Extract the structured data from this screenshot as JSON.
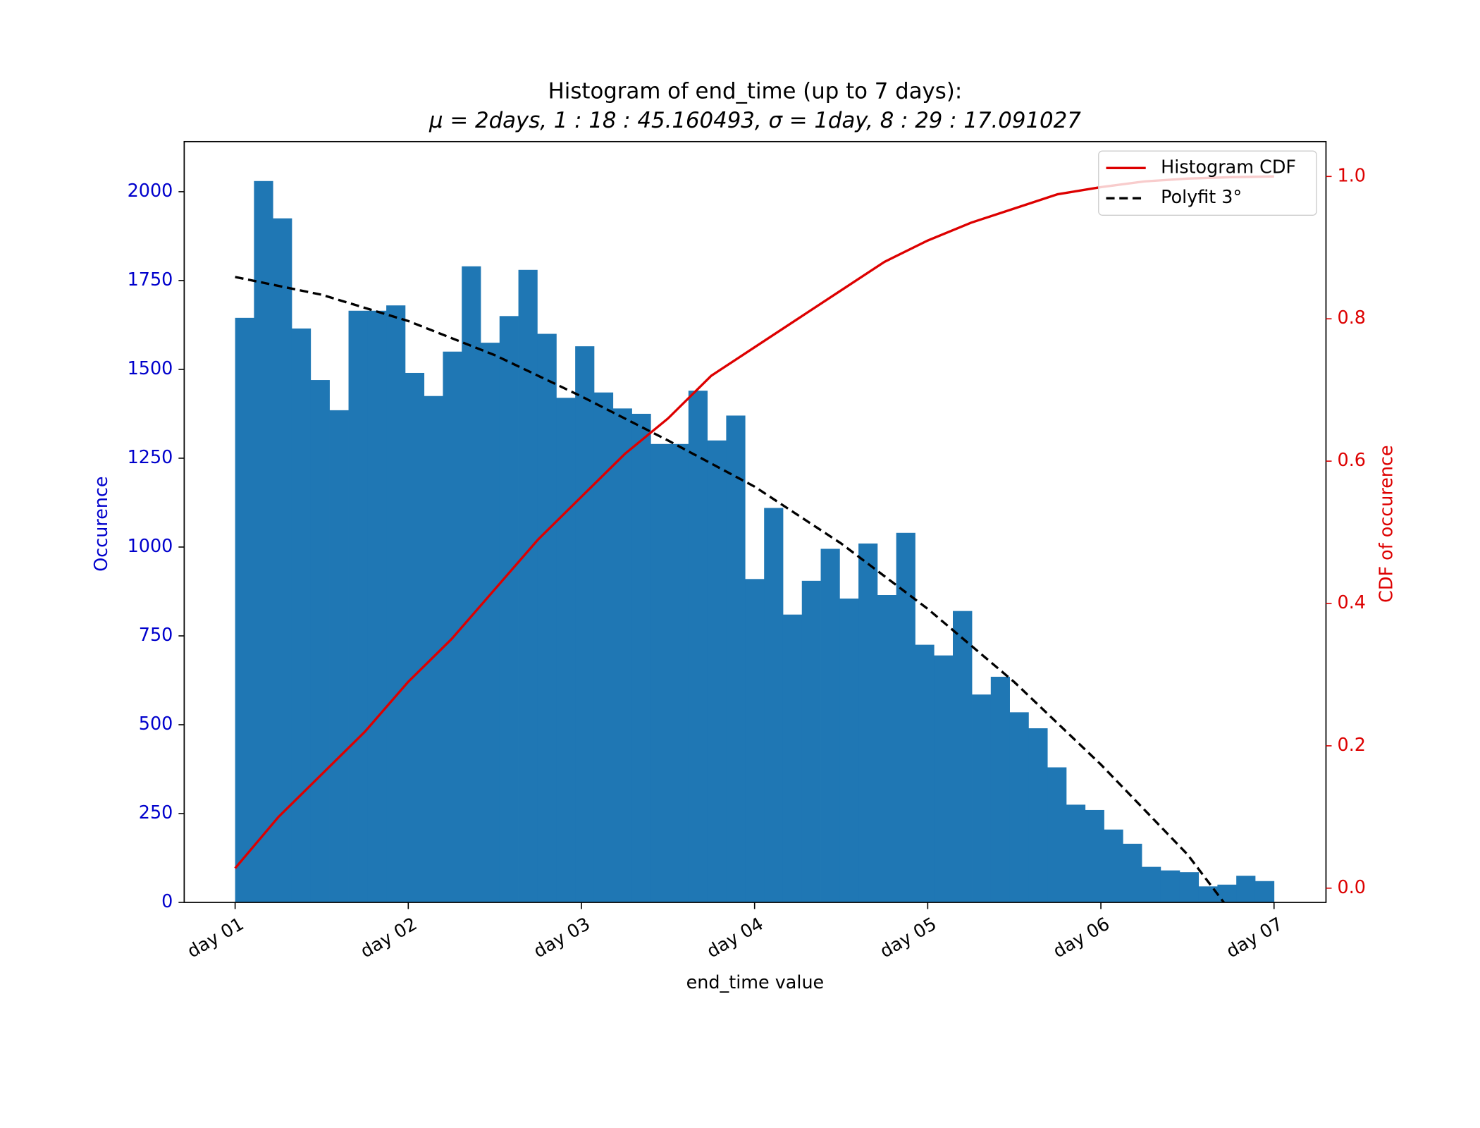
{
  "chart_data": {
    "type": "histogram",
    "title": "Histogram of end_time (up to 7 days):",
    "subtitle": "μ = 2days, 1 : 18 : 45.160493, σ = 1day, 8 : 29 : 17.091027",
    "xlabel": "end_time value",
    "ylabel": "Occurence",
    "y2label": "CDF of occurence",
    "color": "#1f77b4",
    "ylabel_color": "#0000cc",
    "y2label_color": "#dd0000",
    "bins": [
      1,
      1.109,
      1.218,
      1.327,
      1.436,
      1.545,
      1.655,
      1.764,
      1.873,
      1.982,
      2.091,
      2.2,
      2.309,
      2.418,
      2.527,
      2.636,
      2.745,
      2.855,
      2.964,
      3.073,
      3.182,
      3.291,
      3.4,
      3.509,
      3.618,
      3.727,
      3.836,
      3.945,
      4.055,
      4.164,
      4.273,
      4.382,
      4.491,
      4.6,
      4.709,
      4.818,
      4.927,
      5.036,
      5.145,
      5.255,
      5.364,
      5.473,
      5.582,
      5.691,
      5.8,
      5.909,
      6.018,
      6.127,
      6.236,
      6.345,
      6.455,
      6.564,
      6.673,
      6.782,
      6.891,
      7
    ],
    "values": [
      1645,
      2030,
      1925,
      1615,
      1470,
      1385,
      1665,
      1665,
      1680,
      1490,
      1425,
      1550,
      1790,
      1575,
      1650,
      1780,
      1600,
      1420,
      1565,
      1435,
      1390,
      1375,
      1290,
      1290,
      1440,
      1300,
      1370,
      910,
      1110,
      810,
      905,
      995,
      855,
      1010,
      865,
      1040,
      725,
      695,
      820,
      585,
      635,
      535,
      490,
      380,
      275,
      260,
      205,
      165,
      100,
      90,
      85,
      45,
      50,
      75,
      60
    ],
    "xlim": [
      0.706,
      7.3
    ],
    "xticks": [
      {
        "value": 1,
        "label": "day 01"
      },
      {
        "value": 2,
        "label": "day 02"
      },
      {
        "value": 3,
        "label": "day 03"
      },
      {
        "value": 4,
        "label": "day 04"
      },
      {
        "value": 5,
        "label": "day 05"
      },
      {
        "value": 6,
        "label": "day 06"
      },
      {
        "value": 7,
        "label": "day 07"
      }
    ],
    "ylim": [
      0,
      2141
    ],
    "yticks": [
      0,
      250,
      500,
      750,
      1000,
      1250,
      1500,
      1750,
      2000
    ],
    "y2lim": [
      -0.02,
      1.049
    ],
    "y2ticks": [
      {
        "value": 0,
        "label": "0.0"
      },
      0.2,
      0.4,
      0.6,
      0.8,
      {
        "value": 1,
        "label": "1.0"
      }
    ],
    "legend": "upper right",
    "series": [
      {
        "name": "Histogram CDF",
        "color": "#dd0000",
        "axis": "y2",
        "linestyle": "solid",
        "x": [
          1,
          1.25,
          1.5,
          1.75,
          2,
          2.25,
          2.5,
          2.75,
          3,
          3.25,
          3.5,
          3.75,
          4,
          4.25,
          4.5,
          4.75,
          5,
          5.25,
          5.5,
          5.75,
          6,
          6.25,
          6.5,
          6.75,
          7
        ],
        "values": [
          0.028,
          0.1,
          0.16,
          0.22,
          0.29,
          0.35,
          0.42,
          0.49,
          0.55,
          0.61,
          0.66,
          0.72,
          0.76,
          0.8,
          0.84,
          0.88,
          0.91,
          0.935,
          0.955,
          0.975,
          0.985,
          0.993,
          0.997,
          0.999,
          1.0
        ]
      },
      {
        "name": "Polyfit 3°",
        "color": "#000000",
        "axis": "y",
        "linestyle": "dashed",
        "x": [
          1,
          1.5,
          2,
          2.5,
          3,
          3.5,
          4,
          4.5,
          5,
          5.5,
          6,
          6.5,
          6.71
        ],
        "values": [
          1760,
          1710,
          1636,
          1540,
          1424,
          1300,
          1170,
          1010,
          826,
          620,
          388,
          135,
          0
        ]
      }
    ]
  }
}
